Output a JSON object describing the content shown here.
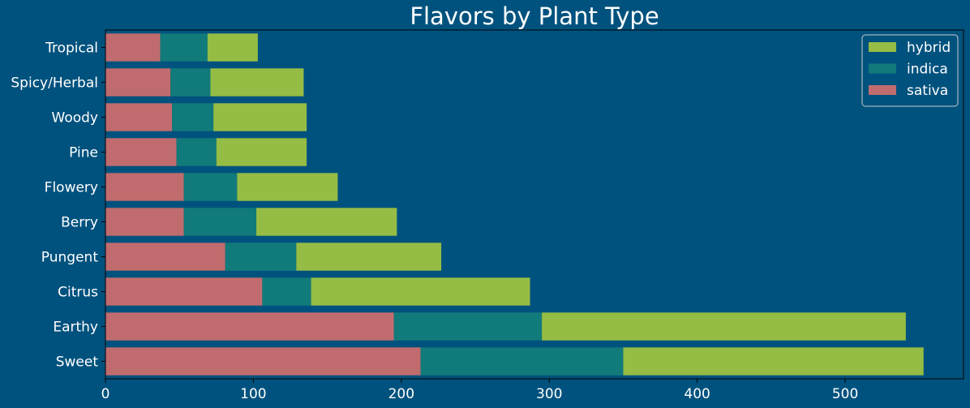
{
  "chart_data": {
    "type": "bar",
    "orientation": "horizontal",
    "stacked": true,
    "title": "Flavors by Plant Type",
    "xlabel": "",
    "ylabel": "",
    "xlim": [
      0,
      580
    ],
    "xticks": [
      0,
      100,
      200,
      300,
      400,
      500
    ],
    "grid": false,
    "legend_position": "top-right",
    "categories": [
      "Tropical",
      "Spicy/Herbal",
      "Woody",
      "Pine",
      "Flowery",
      "Berry",
      "Pungent",
      "Citrus",
      "Earthy",
      "Sweet"
    ],
    "series": [
      {
        "name": "sativa",
        "color": "#c06c6e",
        "values": [
          37,
          44,
          45,
          48,
          53,
          53,
          81,
          106,
          195,
          213
        ]
      },
      {
        "name": "indica",
        "color": "#117a7a",
        "values": [
          32,
          27,
          28,
          27,
          36,
          49,
          48,
          33,
          100,
          137
        ]
      },
      {
        "name": "hybrid",
        "color": "#95bc44",
        "values": [
          34,
          63,
          63,
          61,
          68,
          95,
          98,
          148,
          246,
          203
        ]
      }
    ],
    "legend_order": [
      "hybrid",
      "indica",
      "sativa"
    ],
    "colors": {
      "background": "#00527e",
      "text": "#ffffff",
      "axis": "#000000"
    }
  }
}
